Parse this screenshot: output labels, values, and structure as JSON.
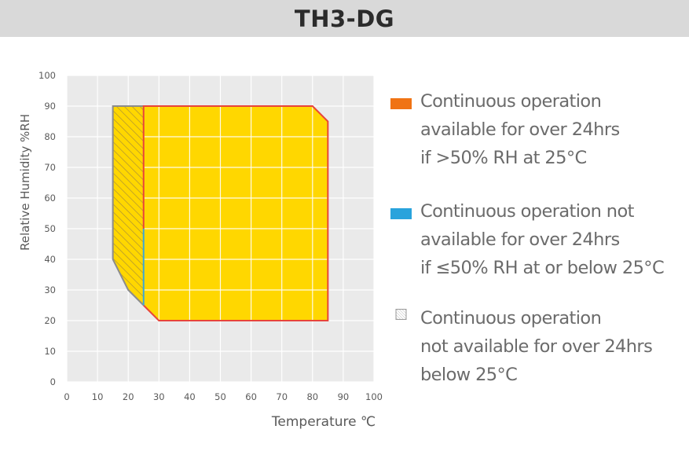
{
  "page": {
    "title": "TH3-DG"
  },
  "colors": {
    "fill": "#ffd700",
    "border_red": "#e8443a",
    "border_blue": "#3aa8d8",
    "border_gray": "#8c8c8c",
    "plot_bg": "#eaeaea",
    "legend_orange": "#f07314",
    "legend_blue": "#29a3dc"
  },
  "chart_data": {
    "type": "area",
    "title": "",
    "xlabel": "Temperature ℃",
    "ylabel": "Relative Humidity %RH",
    "xlim": [
      0,
      100
    ],
    "ylim": [
      0,
      100
    ],
    "x_ticks": [
      "0",
      "10",
      "20",
      "30",
      "40",
      "50",
      "60",
      "70",
      "80",
      "90",
      "100"
    ],
    "y_ticks": [
      "0",
      "10",
      "20",
      "30",
      "40",
      "50",
      "60",
      "70",
      "80",
      "90",
      "100"
    ],
    "grid": true,
    "series": [
      {
        "name": "Continuous operation available for over 24hrs if >50% RH at 25°C",
        "region": "main",
        "points": [
          [
            25,
            90
          ],
          [
            80,
            90
          ],
          [
            85,
            85
          ],
          [
            85,
            20
          ],
          [
            30,
            20
          ],
          [
            25,
            25
          ]
        ]
      },
      {
        "name": "Continuous operation not available for over 24hrs below 25°C",
        "region": "hatched",
        "points": [
          [
            15,
            90
          ],
          [
            25,
            90
          ],
          [
            25,
            25
          ],
          [
            20,
            30
          ],
          [
            15,
            40
          ]
        ]
      },
      {
        "name": "Continuous operation not available for over 24hrs if ≤50% RH at or below 25°C",
        "region": "blue-boundary",
        "points": [
          [
            25,
            50
          ],
          [
            25,
            25
          ]
        ]
      }
    ]
  },
  "legend": [
    {
      "swatch": "orange",
      "lines": [
        "Continuous operation",
        "available for over 24hrs",
        "if >50% RH at 25°C"
      ]
    },
    {
      "swatch": "blue",
      "lines": [
        "Continuous operation not",
        "available for over 24hrs",
        "if ≤50% RH at or below 25°C"
      ]
    },
    {
      "swatch": "hatch",
      "lines": [
        "Continuous operation",
        "not available for over 24hrs",
        "below 25°C"
      ]
    }
  ]
}
